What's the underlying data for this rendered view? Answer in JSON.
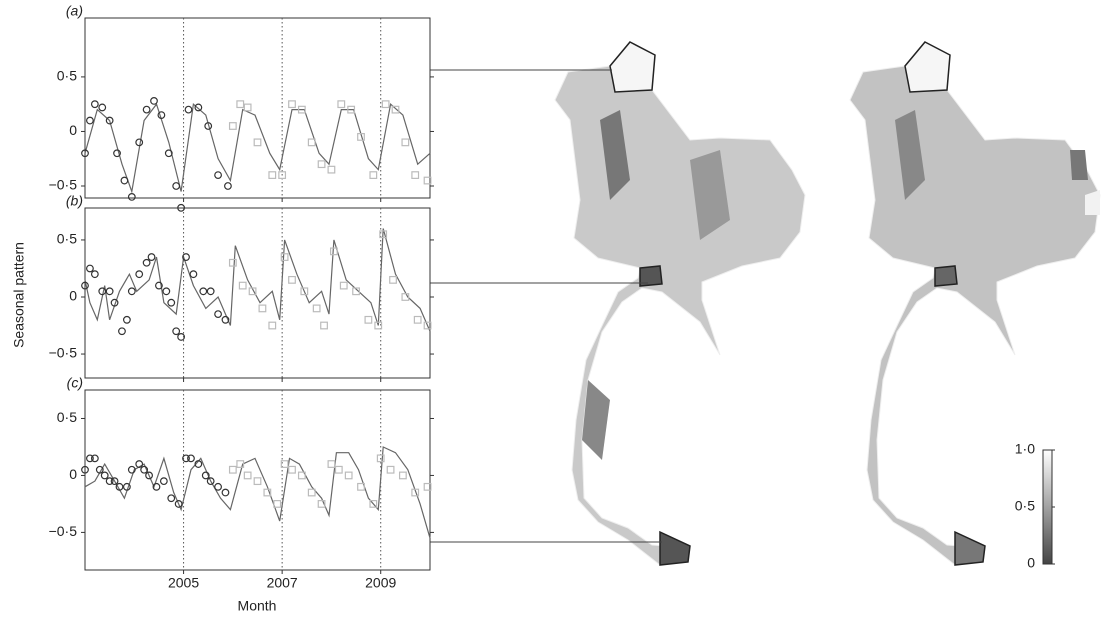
{
  "chart_data": [
    {
      "type": "line",
      "label": "(a)",
      "xlim": [
        2003,
        2010
      ],
      "ylim": [
        -0.61,
        1.04
      ],
      "xticks": [
        2005,
        2007,
        2009
      ],
      "xtick_labels": false,
      "grid": "x",
      "yticks": [
        {
          "value": 0.5,
          "label": "0·5"
        },
        0,
        {
          "value": -0.5,
          "label": "−0·5"
        }
      ],
      "series": [
        {
          "marker": "none",
          "color": "#666666",
          "x": [
            2003.0,
            2003.25,
            2003.5,
            2003.75,
            2003.95,
            2004.2,
            2004.45,
            2004.7,
            2004.95,
            2005.2,
            2005.45,
            2005.7,
            2005.95,
            2006.2,
            2006.45,
            2006.75,
            2006.95,
            2007.2,
            2007.45,
            2007.75,
            2007.95,
            2008.2,
            2008.45,
            2008.75,
            2008.95,
            2009.2,
            2009.45,
            2009.75,
            2010.0
          ],
          "values": [
            -0.2,
            0.2,
            0.1,
            -0.3,
            -0.55,
            0.1,
            0.25,
            -0.1,
            -0.55,
            0.25,
            0.15,
            -0.25,
            -0.45,
            0.2,
            0.15,
            -0.2,
            -0.35,
            0.2,
            0.2,
            -0.2,
            -0.3,
            0.2,
            0.2,
            -0.25,
            -0.35,
            0.25,
            0.15,
            -0.3,
            -0.2
          ]
        },
        {
          "marker": "circle",
          "color": "#333333",
          "x": [
            2003.0,
            2003.1,
            2003.2,
            2003.35,
            2003.5,
            2003.65,
            2003.8,
            2003.95,
            2004.1,
            2004.25,
            2004.4,
            2004.55,
            2004.7,
            2004.85,
            2004.95,
            2005.1,
            2005.3,
            2005.5,
            2005.7,
            2005.9
          ],
          "values": [
            -0.2,
            0.1,
            0.25,
            0.22,
            0.1,
            -0.2,
            -0.45,
            -0.6,
            -0.1,
            0.2,
            0.28,
            0.15,
            -0.2,
            -0.5,
            -0.7,
            0.2,
            0.22,
            0.05,
            -0.4,
            -0.5
          ]
        },
        {
          "marker": "square",
          "color": "#bbbbbb",
          "x": [
            2006.0,
            2006.15,
            2006.3,
            2006.5,
            2006.8,
            2007.0,
            2007.2,
            2007.4,
            2007.6,
            2007.8,
            2008.0,
            2008.2,
            2008.4,
            2008.6,
            2008.85,
            2009.1,
            2009.3,
            2009.5,
            2009.7,
            2009.95
          ],
          "values": [
            0.05,
            0.25,
            0.22,
            -0.1,
            -0.4,
            -0.4,
            0.25,
            0.2,
            -0.1,
            -0.3,
            -0.35,
            0.25,
            0.2,
            -0.05,
            -0.4,
            0.25,
            0.2,
            -0.1,
            -0.4,
            -0.45
          ]
        }
      ]
    },
    {
      "type": "line",
      "label": "(b)",
      "xlim": [
        2003,
        2010
      ],
      "ylim": [
        -0.71,
        0.78
      ],
      "xticks": [
        2005,
        2007,
        2009
      ],
      "xtick_labels": false,
      "grid": "x",
      "yticks": [
        {
          "value": 0.5,
          "label": "0·5"
        },
        0,
        {
          "value": -0.5,
          "label": "−0·5"
        }
      ],
      "series": [
        {
          "marker": "none",
          "color": "#666666",
          "x": [
            2003.0,
            2003.1,
            2003.25,
            2003.4,
            2003.5,
            2003.7,
            2003.9,
            2004.05,
            2004.3,
            2004.45,
            2004.6,
            2004.85,
            2005.0,
            2005.2,
            2005.45,
            2005.7,
            2005.95,
            2006.05,
            2006.3,
            2006.55,
            2006.8,
            2006.95,
            2007.05,
            2007.3,
            2007.55,
            2007.8,
            2007.95,
            2008.05,
            2008.3,
            2008.55,
            2008.8,
            2008.95,
            2009.05,
            2009.3,
            2009.55,
            2009.8,
            2010.0
          ],
          "values": [
            0.15,
            -0.05,
            -0.2,
            0.1,
            -0.2,
            0.05,
            0.2,
            0.05,
            0.15,
            0.35,
            -0.05,
            -0.15,
            0.35,
            0.1,
            -0.1,
            0,
            -0.25,
            0.45,
            0.15,
            -0.05,
            0.05,
            -0.2,
            0.5,
            0.2,
            -0.05,
            0.05,
            -0.15,
            0.5,
            0.15,
            0.05,
            -0.05,
            -0.25,
            0.6,
            0.2,
            0,
            -0.1,
            -0.3
          ]
        },
        {
          "marker": "circle",
          "color": "#333333",
          "x": [
            2003.0,
            2003.1,
            2003.2,
            2003.35,
            2003.5,
            2003.6,
            2003.75,
            2003.85,
            2003.95,
            2004.1,
            2004.25,
            2004.35,
            2004.5,
            2004.65,
            2004.75,
            2004.85,
            2004.95,
            2005.05,
            2005.2,
            2005.4,
            2005.55,
            2005.7,
            2005.85
          ],
          "values": [
            0.1,
            0.25,
            0.2,
            0.05,
            0.05,
            -0.05,
            -0.3,
            -0.2,
            0.05,
            0.2,
            0.3,
            0.35,
            0.1,
            0.05,
            -0.05,
            -0.3,
            -0.35,
            0.35,
            0.2,
            0.05,
            0.05,
            -0.15,
            -0.2
          ]
        },
        {
          "marker": "square",
          "color": "#bbbbbb",
          "x": [
            2006.0,
            2006.2,
            2006.4,
            2006.6,
            2006.8,
            2007.05,
            2007.2,
            2007.45,
            2007.7,
            2007.85,
            2008.05,
            2008.25,
            2008.5,
            2008.75,
            2008.95,
            2009.05,
            2009.25,
            2009.5,
            2009.75,
            2009.95
          ],
          "values": [
            0.3,
            0.1,
            0.05,
            -0.1,
            -0.25,
            0.35,
            0.15,
            0.05,
            -0.1,
            -0.25,
            0.4,
            0.1,
            0.05,
            -0.2,
            -0.25,
            0.55,
            0.15,
            0,
            -0.2,
            -0.25
          ]
        }
      ]
    },
    {
      "type": "line",
      "label": "(c)",
      "xlim": [
        2003,
        2010
      ],
      "ylim": [
        -0.83,
        0.75
      ],
      "xticks": [
        2005,
        2007,
        2009
      ],
      "xtick_labels": true,
      "grid": "x",
      "yticks": [
        {
          "value": 0.5,
          "label": "0·5"
        },
        0,
        {
          "value": -0.5,
          "label": "−0·5"
        }
      ],
      "series": [
        {
          "marker": "none",
          "color": "#666666",
          "x": [
            2003.0,
            2003.2,
            2003.4,
            2003.6,
            2003.8,
            2004.0,
            2004.2,
            2004.4,
            2004.6,
            2004.8,
            2004.95,
            2005.15,
            2005.35,
            2005.55,
            2005.75,
            2005.95,
            2006.2,
            2006.45,
            2006.7,
            2006.95,
            2007.15,
            2007.35,
            2007.6,
            2007.8,
            2007.95,
            2008.1,
            2008.35,
            2008.55,
            2008.75,
            2008.95,
            2009.05,
            2009.3,
            2009.55,
            2009.8,
            2010.0
          ],
          "values": [
            -0.1,
            -0.05,
            0.1,
            -0.05,
            -0.2,
            0.05,
            0.1,
            -0.1,
            0.15,
            -0.15,
            -0.3,
            0.05,
            0.15,
            -0.05,
            -0.2,
            -0.3,
            0.1,
            0.15,
            -0.1,
            -0.4,
            0.15,
            0.1,
            -0.1,
            -0.2,
            -0.35,
            0.2,
            0.2,
            0.05,
            -0.2,
            -0.3,
            0.25,
            0.2,
            0.05,
            -0.25,
            -0.55
          ]
        },
        {
          "marker": "circle",
          "color": "#333333",
          "x": [
            2003.0,
            2003.1,
            2003.2,
            2003.3,
            2003.4,
            2003.5,
            2003.6,
            2003.7,
            2003.85,
            2003.95,
            2004.1,
            2004.2,
            2004.3,
            2004.45,
            2004.6,
            2004.75,
            2004.9,
            2005.05,
            2005.15,
            2005.3,
            2005.45,
            2005.55,
            2005.7,
            2005.85
          ],
          "values": [
            0.05,
            0.15,
            0.15,
            0.05,
            0,
            -0.05,
            -0.05,
            -0.1,
            -0.1,
            0.05,
            0.1,
            0.05,
            0,
            -0.1,
            -0.05,
            -0.2,
            -0.25,
            0.15,
            0.15,
            0.1,
            0,
            -0.05,
            -0.1,
            -0.15
          ]
        },
        {
          "marker": "square",
          "color": "#bbbbbb",
          "x": [
            2006.0,
            2006.15,
            2006.3,
            2006.5,
            2006.7,
            2006.9,
            2007.05,
            2007.2,
            2007.4,
            2007.6,
            2007.8,
            2008.0,
            2008.15,
            2008.35,
            2008.6,
            2008.85,
            2009.0,
            2009.2,
            2009.45,
            2009.7,
            2009.95
          ],
          "values": [
            0.05,
            0.1,
            0,
            -0.05,
            -0.15,
            -0.25,
            0.1,
            0.05,
            0,
            -0.15,
            -0.25,
            0.1,
            0.05,
            0,
            -0.1,
            -0.25,
            0.15,
            0.05,
            0,
            -0.15,
            -0.1
          ]
        }
      ]
    }
  ],
  "ylabel": "Seasonal pattern",
  "xlabel": "Month",
  "colorbar": {
    "lim": [
      0,
      1
    ],
    "ticks": [
      {
        "value": 1,
        "label": "1·0"
      },
      {
        "value": 0.5,
        "label": "0·5"
      },
      0
    ]
  }
}
